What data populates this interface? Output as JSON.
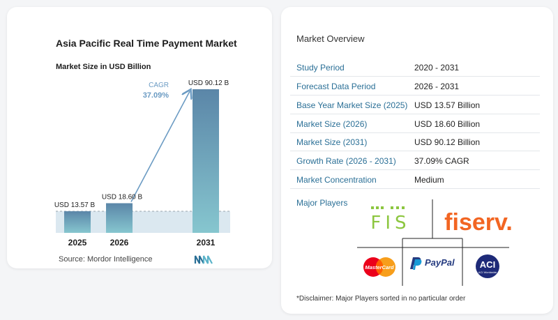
{
  "chart_data": {
    "type": "bar",
    "title": "Asia Pacific Real Time Payment Market",
    "subtitle": "Market Size in USD Billion",
    "categories": [
      "2025",
      "2026",
      "2031"
    ],
    "values": [
      13.57,
      18.6,
      90.12
    ],
    "data_labels": [
      "USD 13.57 B",
      "USD 18.60 B",
      "USD 90.12 B"
    ],
    "cagr_label": "CAGR",
    "cagr_value": "37.09%",
    "ylim": [
      0,
      90.12
    ],
    "colors": {
      "bar_top": "#5b86a8",
      "bar_bottom": "#86c6cf",
      "baseline_band": "#dbe8f0",
      "arrow": "#6b9bc3"
    }
  },
  "source": "Source:  Mordor Intelligence",
  "source_logo_icon": "mordor-intelligence-logo",
  "overview": {
    "title": "Market Overview",
    "rows": [
      {
        "label": "Study Period",
        "value": "2020 - 2031"
      },
      {
        "label": "Forecast Data Period",
        "value": "2026 - 2031"
      },
      {
        "label": "Base Year Market Size (2025)",
        "value": "USD 13.57 Billion"
      },
      {
        "label": "Market Size (2026)",
        "value": "USD 18.60 Billion"
      },
      {
        "label": "Market Size (2031)",
        "value": "USD 90.12 Billion"
      },
      {
        "label": "Growth Rate (2026 - 2031)",
        "value": "37.09% CAGR"
      },
      {
        "label": "Market Concentration",
        "value": "Medium"
      }
    ]
  },
  "major_players": {
    "label": "Major Players",
    "logos": [
      "FIS",
      "fiserv.",
      "MasterCard",
      "PayPal",
      "ACI Worldwide"
    ]
  },
  "disclaimer": "*Disclaimer: Major Players sorted in no particular order"
}
